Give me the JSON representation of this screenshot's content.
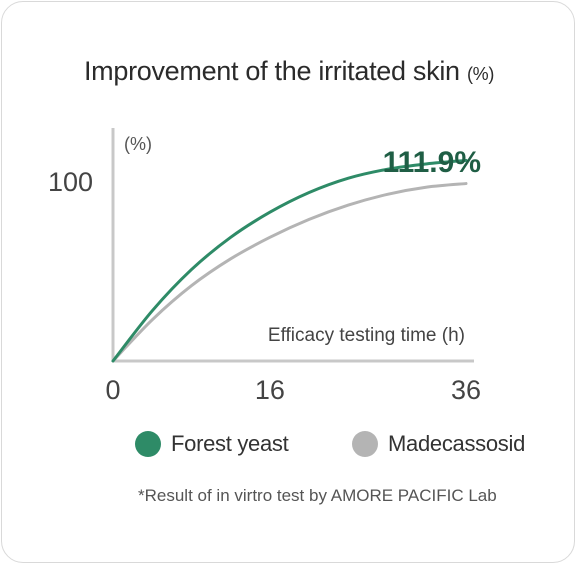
{
  "chart_data": {
    "type": "line",
    "title": "Improvement of the irritated skin",
    "title_unit": "(%)",
    "y_unit_label": "(%)",
    "xlabel": "Efficacy testing time (h)",
    "x_ticks": [
      "0",
      "16",
      "36"
    ],
    "y_ticks": [
      "100"
    ],
    "x": [
      0,
      4,
      8,
      12,
      16,
      20,
      24,
      28,
      32,
      36
    ],
    "xlim": [
      0,
      36
    ],
    "ylim": [
      0,
      130
    ],
    "series": [
      {
        "name": "Forest yeast",
        "color": "#2e8b67",
        "values": [
          0,
          28,
          51,
          69,
          83,
          94,
          102,
          107,
          110,
          111.9
        ]
      },
      {
        "name": "Madecassosid",
        "color": "#b4b4b4",
        "values": [
          0,
          23,
          42,
          57,
          69,
          79,
          87,
          93,
          97,
          99
        ]
      }
    ],
    "annotation": {
      "text": "111.9%",
      "color": "#1f5e45"
    },
    "legend_position": "bottom"
  },
  "footnote": "*Result of in virtro test by AMORE PACIFIC Lab"
}
